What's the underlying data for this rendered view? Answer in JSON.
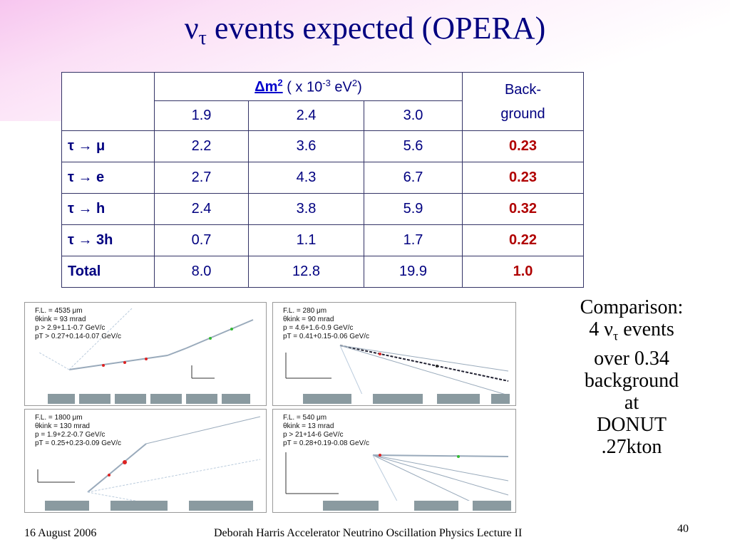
{
  "slide": {
    "title_nu": "ν",
    "title_sub": "τ",
    "title_text": " events expected (OPERA)"
  },
  "table": {
    "dm_label": "Δm",
    "dm_exp": "2",
    "dm_unit_pre": " ( x 10",
    "dm_unit_exp": "-3",
    "dm_unit_mid": " eV",
    "dm_unit_exp2": "2",
    "dm_unit_post": ")",
    "background_line1": "Back-",
    "background_line2": "ground",
    "columns": [
      "1.9",
      "2.4",
      "3.0"
    ],
    "rows": [
      {
        "label": "τ → μ",
        "values": [
          "2.2",
          "3.6",
          "5.6"
        ],
        "background": "0.23"
      },
      {
        "label": "τ → e",
        "values": [
          "2.7",
          "4.3",
          "6.7"
        ],
        "background": "0.23"
      },
      {
        "label": "τ → h",
        "values": [
          "2.4",
          "3.8",
          "5.9"
        ],
        "background": "0.32"
      },
      {
        "label": "τ → 3h",
        "values": [
          "0.7",
          "1.1",
          "1.7"
        ],
        "background": "0.22"
      },
      {
        "label": "Total",
        "values": [
          "8.0",
          "12.8",
          "19.9"
        ],
        "background": "1.0"
      }
    ]
  },
  "panels": [
    {
      "fl": "F.L. = 4535 μm",
      "theta": "θkink = 93 mrad",
      "p": "p  > 2.9+1.1-0.7  GeV/c",
      "pt": "pT  > 0.27+0.14-0.07  GeV/c"
    },
    {
      "fl": "F.L. = 280 μm",
      "theta": "θkink = 90 mrad",
      "p": "p  = 4.6+1.6-0.9  GeV/c",
      "pt": "pT  = 0.41+0.15-0.06  GeV/c"
    },
    {
      "fl": "F.L. = 1800 μm",
      "theta": "θkink = 130 mrad",
      "p": "p  = 1.9+2.2-0.7  GeV/c",
      "pt": "pT  = 0.25+0.23-0.09  GeV/c"
    },
    {
      "fl": "F.L. = 540 μm",
      "theta": "θkink = 13 mrad",
      "p": "p  > 21+14-6  GeV/c",
      "pt": "pT  = 0.28+0.19-0.08  GeV/c"
    }
  ],
  "comparison": {
    "line1": "Comparison:",
    "line2_pre": "4 ν",
    "line2_sub": "τ",
    "line2_post": " events",
    "line3": "over 0.34",
    "line4": "background",
    "line5": "at",
    "line6": "DONUT",
    "line7": ".27kton"
  },
  "footer": {
    "date": "16 August 2006",
    "author": "Deborah Harris  Accelerator Neutrino Oscillation Physics Lecture II",
    "page": "40"
  }
}
